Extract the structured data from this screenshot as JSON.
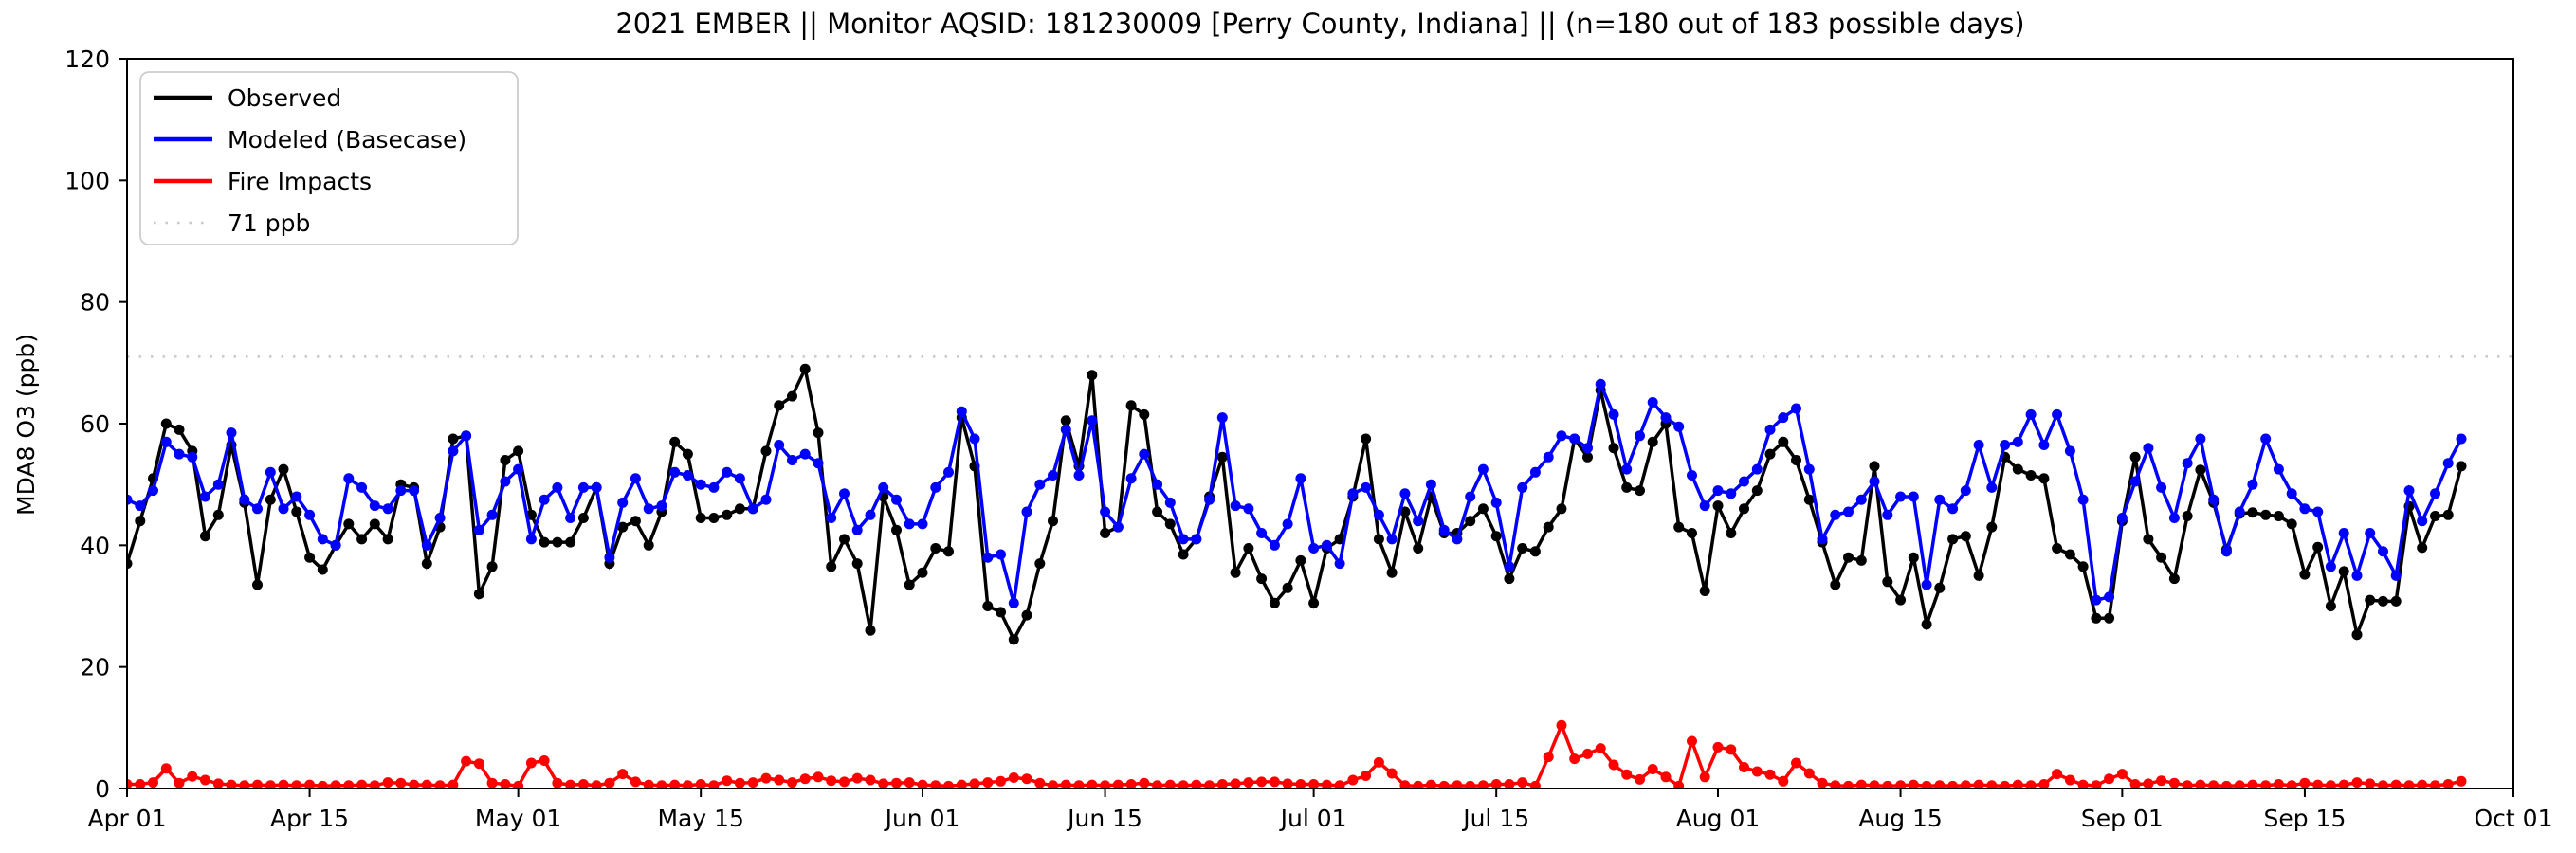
{
  "title": "2021 EMBER || Monitor AQSID: 181230009 [Perry County, Indiana] || (n=180 out of 183 possible days)",
  "ylabel": "MDA8 O3 (ppb)",
  "legend": {
    "items": [
      {
        "key": "observed",
        "label": "Observed",
        "style": "solid"
      },
      {
        "key": "modeled",
        "label": "Modeled (Basecase)",
        "style": "solid"
      },
      {
        "key": "fire",
        "label": "Fire Impacts",
        "style": "solid"
      },
      {
        "key": "threshold",
        "label": "71 ppb",
        "style": "dotted"
      }
    ]
  },
  "colors": {
    "observed": "#000000",
    "modeled": "#0000ff",
    "fire": "#ff0000",
    "threshold": "#c8c8c8",
    "axis": "#000000"
  },
  "chart_data": {
    "type": "line",
    "title": "2021 EMBER || Monitor AQSID: 181230009 [Perry County, Indiana] || (n=180 out of 183 possible days)",
    "xlabel": "",
    "ylabel": "MDA8 O3 (ppb)",
    "ylim": [
      0,
      120
    ],
    "yticks": [
      0,
      20,
      40,
      60,
      80,
      100,
      120
    ],
    "grid": false,
    "legend_position": "upper left",
    "threshold_ppb": 71,
    "x_axis": {
      "start_date": "2021-04-01",
      "end_date_axis": "2021-10-01",
      "days_total": 183,
      "data_days": 180,
      "last_data_date": "2021-09-27",
      "tick_labels": [
        "Apr 01",
        "Apr 15",
        "May 01",
        "May 15",
        "Jun 01",
        "Jun 15",
        "Jul 01",
        "Jul 15",
        "Aug 01",
        "Aug 15",
        "Sep 01",
        "Sep 15",
        "Oct 01"
      ],
      "tick_day_offsets": [
        0,
        14,
        30,
        44,
        61,
        75,
        91,
        105,
        122,
        136,
        153,
        167,
        183
      ]
    },
    "series": [
      {
        "name": "Observed",
        "color": "#000000",
        "values": [
          37,
          44,
          51,
          60,
          59,
          55.5,
          41.5,
          45,
          56.5,
          47,
          33.5,
          47.5,
          52.5,
          45.5,
          38,
          36,
          40,
          43.5,
          41,
          43.5,
          41,
          50,
          49.5,
          37,
          43,
          57.5,
          58,
          32,
          36.5,
          54,
          55.5,
          45,
          40.5,
          40.5,
          40.5,
          44.5,
          49.5,
          37,
          43,
          44,
          40,
          45.5,
          57,
          55,
          44.5,
          44.5,
          45,
          46,
          46,
          55.5,
          63,
          64.5,
          69,
          58.5,
          36.5,
          41,
          37,
          26,
          48,
          42.5,
          33.5,
          35.5,
          39.5,
          39,
          61,
          53,
          30,
          29,
          24.5,
          28.5,
          37,
          44,
          60.5,
          53,
          68,
          42,
          43,
          63,
          61.5,
          45.5,
          43.5,
          38.5,
          41,
          48,
          54.5,
          35.5,
          39.5,
          34.5,
          30.5,
          33,
          37.5,
          30.5,
          39.5,
          41,
          48,
          57.5,
          41,
          35.5,
          45.5,
          39.5,
          48,
          42,
          42,
          44,
          46,
          41.5,
          34.5,
          39.5,
          39,
          43,
          46,
          57.5,
          54.5,
          65.5,
          56,
          49.5,
          49,
          57,
          60,
          43,
          42,
          32.5,
          46.5,
          42,
          46,
          49,
          55,
          57,
          54,
          47.5,
          40.5,
          33.5,
          38,
          37.5,
          53,
          34,
          31,
          38,
          27,
          33,
          41,
          41.5,
          35,
          43,
          54.5,
          52.5,
          51.5,
          51,
          39.5,
          38.5,
          36.5,
          28,
          28,
          44,
          54.5,
          41,
          38,
          34.5,
          44.8,
          52.4,
          47,
          39.3,
          45.2,
          45.4,
          45,
          44.8,
          43.5,
          35.2,
          39.7,
          30,
          35.7,
          25.3,
          31,
          30.8,
          30.8,
          46.4,
          39.6,
          44.8,
          45,
          53
        ]
      },
      {
        "name": "Modeled (Basecase)",
        "color": "#0000ff",
        "values": [
          47.5,
          46.5,
          49,
          57,
          55,
          54.5,
          48,
          50,
          58.5,
          47.5,
          46,
          52,
          46,
          48,
          45,
          41,
          40,
          51,
          49.5,
          46.5,
          46,
          49,
          49,
          40,
          44.5,
          55.5,
          58,
          42.5,
          45,
          50.5,
          52.5,
          41,
          47.5,
          49.5,
          44.5,
          49.5,
          49.5,
          38,
          47,
          51,
          46,
          46.5,
          52,
          51.5,
          50,
          49.5,
          52,
          51,
          46,
          47.5,
          56.5,
          54,
          55,
          53.5,
          44.5,
          48.5,
          42.5,
          45,
          49.5,
          47.5,
          43.5,
          43.5,
          49.5,
          52,
          62,
          57.5,
          38,
          38.5,
          30.5,
          45.5,
          50,
          51.5,
          59,
          51.5,
          60.5,
          45.5,
          43,
          51,
          55,
          50,
          47,
          41,
          41,
          47.5,
          61,
          46.5,
          46,
          42,
          40,
          43.5,
          51,
          39.5,
          40,
          37,
          48.5,
          49.5,
          45,
          41,
          48.5,
          44,
          50,
          42.5,
          41,
          48,
          52.5,
          47,
          36.5,
          49.5,
          52,
          54.5,
          58,
          57.5,
          56,
          66.5,
          61.5,
          52.5,
          58,
          63.5,
          61,
          59.5,
          51.5,
          46.5,
          49,
          48.5,
          50.5,
          52.5,
          59,
          61,
          62.5,
          52.5,
          41,
          45,
          45.5,
          47.5,
          50.5,
          45,
          48,
          48,
          33.5,
          47.5,
          46,
          49,
          56.5,
          49.5,
          56.5,
          57,
          61.5,
          56.5,
          61.5,
          55.5,
          47.5,
          31,
          31.5,
          44.5,
          50.5,
          56,
          49.5,
          44.5,
          53.5,
          57.5,
          47.5,
          39,
          45.5,
          50,
          57.5,
          52.5,
          48.5,
          46,
          45.5,
          36.5,
          42,
          35,
          42,
          39,
          35,
          49,
          44,
          48.5,
          53.5,
          57.5
        ]
      },
      {
        "name": "Fire Impacts",
        "color": "#ff0000",
        "values": [
          0.7,
          0.7,
          1.0,
          3.3,
          0.9,
          2.0,
          1.4,
          0.8,
          0.6,
          0.5,
          0.6,
          0.5,
          0.6,
          0.5,
          0.6,
          0.4,
          0.5,
          0.5,
          0.6,
          0.5,
          1.0,
          0.9,
          0.6,
          0.6,
          0.5,
          0.6,
          4.5,
          4.1,
          0.9,
          0.7,
          0.4,
          4.2,
          4.6,
          0.9,
          0.6,
          0.7,
          0.5,
          0.9,
          2.4,
          1.1,
          0.6,
          0.5,
          0.6,
          0.5,
          0.7,
          0.5,
          1.3,
          0.9,
          1.0,
          1.7,
          1.4,
          1.0,
          1.6,
          1.9,
          1.3,
          1.1,
          1.7,
          1.4,
          0.8,
          0.9,
          1.0,
          0.6,
          0.5,
          0.4,
          0.6,
          0.8,
          1.0,
          1.2,
          1.8,
          1.6,
          0.9,
          0.5,
          0.6,
          0.5,
          0.6,
          0.5,
          0.6,
          0.7,
          0.9,
          0.5,
          0.6,
          0.5,
          0.6,
          0.5,
          0.7,
          0.8,
          1.0,
          1.1,
          1.1,
          0.8,
          0.7,
          0.7,
          0.6,
          0.5,
          1.4,
          2.1,
          4.3,
          2.5,
          0.5,
          0.4,
          0.6,
          0.4,
          0.5,
          0.4,
          0.5,
          0.7,
          0.7,
          1.0,
          0.4,
          5.2,
          10.4,
          4.9,
          5.7,
          6.6,
          3.9,
          2.3,
          1.5,
          3.2,
          1.9,
          0.4,
          7.8,
          1.9,
          6.8,
          6.4,
          3.5,
          2.8,
          2.3,
          1.2,
          4.2,
          2.5,
          0.9,
          0.5,
          0.4,
          0.6,
          0.5,
          0.4,
          0.5,
          0.6,
          0.4,
          0.5,
          0.4,
          0.5,
          0.6,
          0.5,
          0.4,
          0.6,
          0.5,
          0.7,
          2.4,
          1.4,
          0.6,
          0.5,
          1.6,
          2.4,
          0.7,
          0.8,
          1.3,
          0.9,
          0.5,
          0.6,
          0.5,
          0.4,
          0.5,
          0.6,
          0.5,
          0.7,
          0.5,
          0.9,
          0.6,
          0.5,
          0.6,
          1.0,
          0.8,
          0.5,
          0.6,
          0.5,
          0.6,
          0.5,
          0.7,
          1.2
        ]
      }
    ]
  }
}
